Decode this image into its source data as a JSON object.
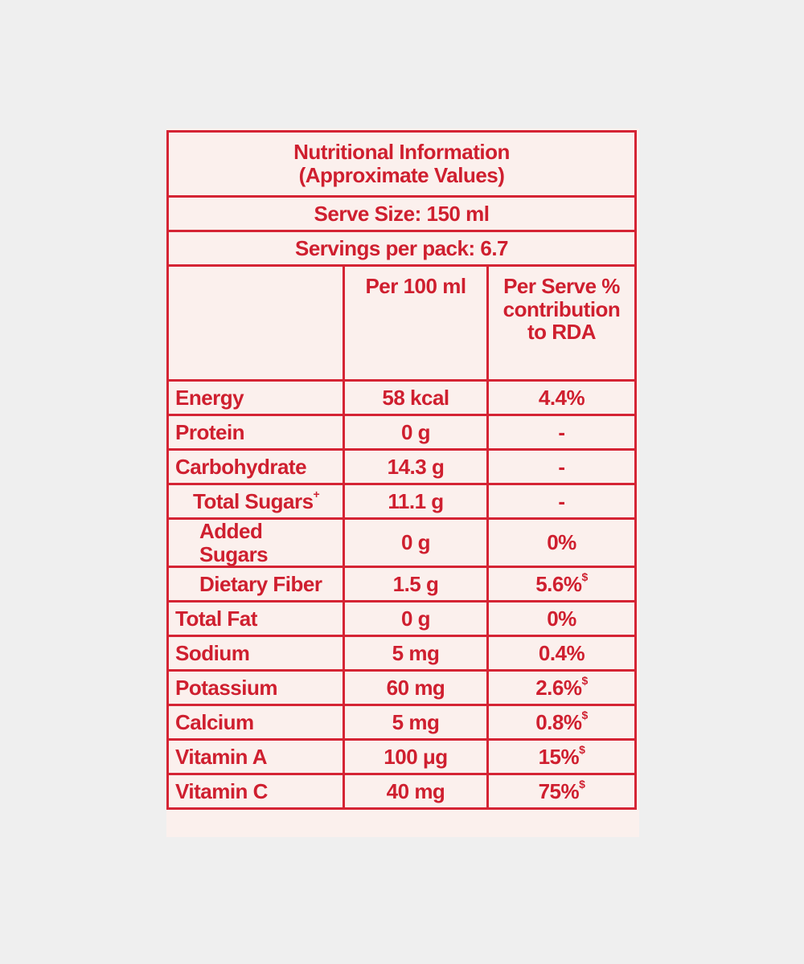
{
  "header": {
    "title_line1": "Nutritional Information",
    "title_line2": "(Approximate Values)",
    "serve_size": "Serve Size: 150 ml",
    "servings_per_pack": "Servings per pack: 6.7"
  },
  "columns": {
    "per_100": "Per 100 ml",
    "per_serve_line1": "Per Serve %",
    "per_serve_line2": "contribution",
    "per_serve_line3": "to RDA"
  },
  "rows": [
    {
      "name": "Energy",
      "per100": "58 kcal",
      "rda": "4.4%",
      "mark": ""
    },
    {
      "name": "Protein",
      "per100": "0 g",
      "rda": "-",
      "mark": ""
    },
    {
      "name": "Carbohydrate",
      "per100": "14.3 g",
      "rda": "-",
      "mark": ""
    },
    {
      "name": "Total Sugars",
      "name_mark": "+",
      "per100": "11.1 g",
      "rda": "-",
      "mark": ""
    },
    {
      "name": "Added Sugars",
      "per100": "0 g",
      "rda": "0%",
      "mark": ""
    },
    {
      "name": "Dietary Fiber",
      "per100": "1.5 g",
      "rda": "5.6%",
      "mark": "$"
    },
    {
      "name": "Total Fat",
      "per100": "0 g",
      "rda": "0%",
      "mark": ""
    },
    {
      "name": "Sodium",
      "per100": "5 mg",
      "rda": "0.4%",
      "mark": ""
    },
    {
      "name": "Potassium",
      "per100": "60 mg",
      "rda": "2.6%",
      "mark": "$"
    },
    {
      "name": "Calcium",
      "per100": "5 mg",
      "rda": "0.8%",
      "mark": "$"
    },
    {
      "name": "Vitamin A",
      "per100": "100 μg",
      "rda": "15%",
      "mark": "$"
    },
    {
      "name": "Vitamin C",
      "per100": "40 mg",
      "rda": "75%",
      "mark": "$"
    }
  ],
  "colors": {
    "ink": "#cf1f2f",
    "label_background": "#fbf0ed",
    "page_background": "#efefef"
  }
}
